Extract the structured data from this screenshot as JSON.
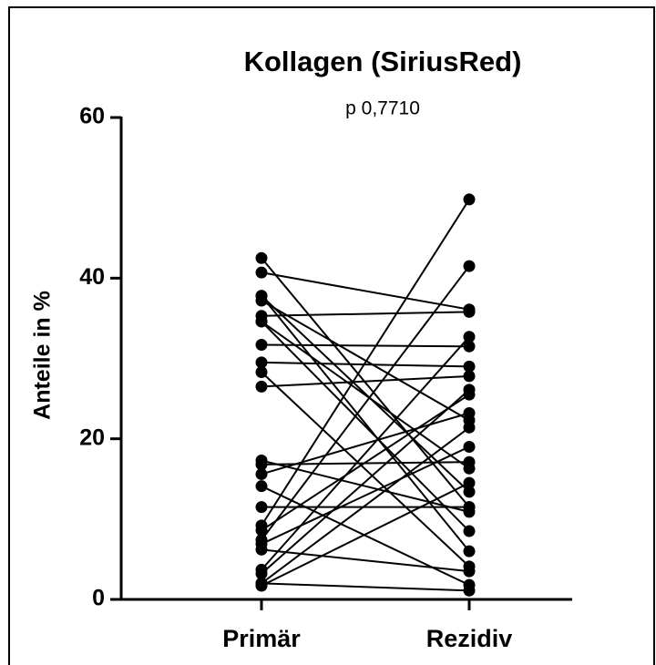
{
  "chart_data": {
    "type": "paired",
    "title": "Kollagen (SiriusRed)",
    "subtitle": "p 0,7710",
    "y_label": "Anteile in %",
    "categories": [
      "Primär",
      "Rezidiv"
    ],
    "color": "#000000",
    "ylim": [
      0,
      60
    ],
    "yticks": [
      0,
      20,
      40,
      60
    ],
    "pairs": [
      [
        42.5,
        11.5
      ],
      [
        40.7,
        36.1
      ],
      [
        37.8,
        13.4
      ],
      [
        37.2,
        22.3
      ],
      [
        35.3,
        35.8
      ],
      [
        34.6,
        16.3
      ],
      [
        31.7,
        31.5
      ],
      [
        29.5,
        29.0
      ],
      [
        28.3,
        4.1
      ],
      [
        26.5,
        27.8
      ],
      [
        17.3,
        10.9
      ],
      [
        16.8,
        17.1
      ],
      [
        15.6,
        23.2
      ],
      [
        14.1,
        1.8
      ],
      [
        11.5,
        11.5
      ],
      [
        9.2,
        49.8
      ],
      [
        8.6,
        25.5
      ],
      [
        7.4,
        41.5
      ],
      [
        6.9,
        19.0
      ],
      [
        6.2,
        3.5
      ],
      [
        3.7,
        32.7
      ],
      [
        3.2,
        26.1
      ],
      [
        2.0,
        21.4
      ],
      [
        1.7,
        14.5
      ],
      [
        34.6,
        8.5
      ],
      [
        37.8,
        6.0
      ],
      [
        2.0,
        1.1
      ]
    ]
  }
}
